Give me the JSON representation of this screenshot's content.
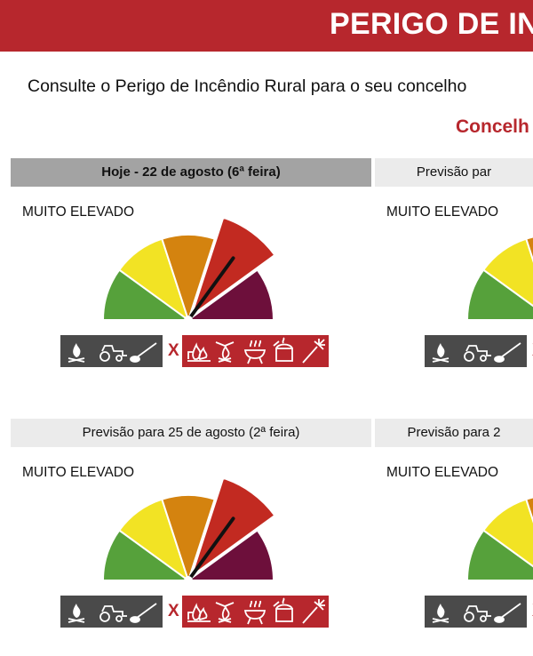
{
  "header": {
    "title": "PERIGO DE IN"
  },
  "intro_text": "Consulte o Perigo de Incêndio Rural para o seu concelho",
  "concelho_label": "Concelh",
  "x_symbol": "X",
  "colors": {
    "brand_red": "#b7272d",
    "gauge_levels": [
      "#56a13b",
      "#f2e324",
      "#d4830f",
      "#c22a21",
      "#6d0f3b"
    ]
  },
  "danger_scale_max": 5,
  "cards": [
    {
      "header": "Hoje - 22 de agosto (6ª feira)",
      "level": "MUITO ELEVADO",
      "level_index": 4
    },
    {
      "header": "Previsão par",
      "level": "MUITO ELEVADO",
      "level_index": 4
    },
    {
      "header": "Previsão para 25 de agosto (2ª feira)",
      "level": "MUITO ELEVADO",
      "level_index": 4
    },
    {
      "header": "Previsão para 2",
      "level": "MUITO ELEVADO",
      "level_index": 4
    }
  ],
  "allowed_activity_icons": [
    "campfire-icon",
    "tractor-icon",
    "mower-icon"
  ],
  "forbidden_activity_icons": [
    "burning-icon",
    "festival-bonfire-icon",
    "barbecue-icon",
    "smoker-icon",
    "fireworks-icon"
  ]
}
